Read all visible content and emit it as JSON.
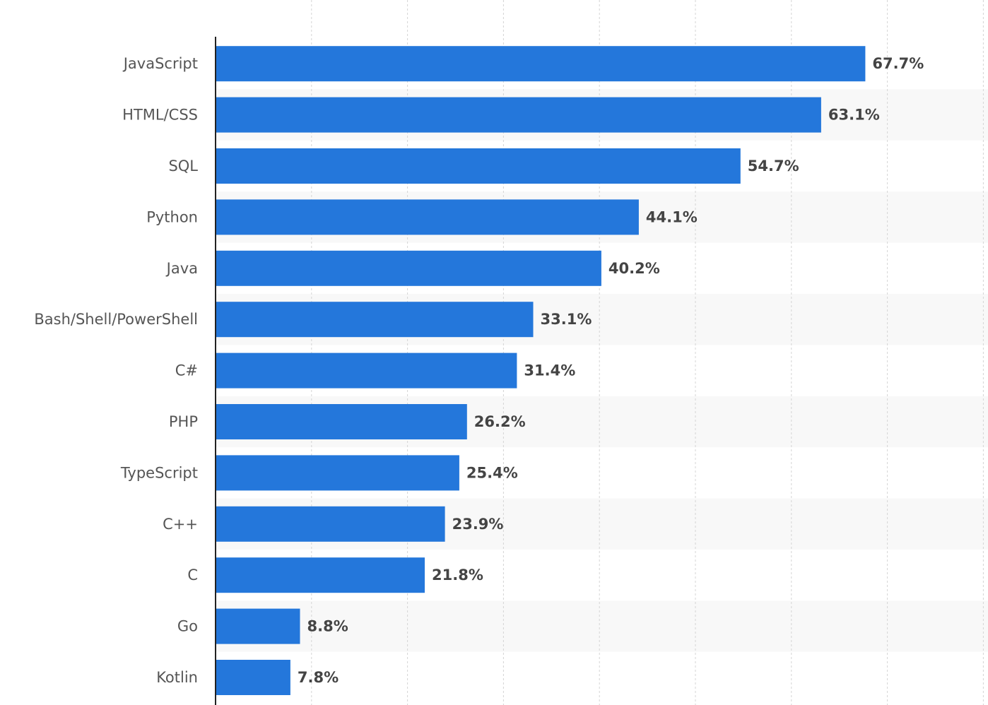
{
  "colors": {
    "bar": "#2477db",
    "band": "#f8f8f8",
    "grid": "#d4d4d4",
    "axis": "#222222",
    "category_text": "#555555",
    "value_text": "#444444"
  },
  "chart_data": {
    "type": "bar",
    "orientation": "horizontal",
    "title": "",
    "xlabel": "",
    "ylabel": "",
    "categories": [
      "JavaScript",
      "HTML/CSS",
      "SQL",
      "Python",
      "Java",
      "Bash/Shell/PowerShell",
      "C#",
      "PHP",
      "TypeScript",
      "C++",
      "C",
      "Go",
      "Kotlin"
    ],
    "values": [
      67.7,
      63.1,
      54.7,
      44.1,
      40.2,
      33.1,
      31.4,
      26.2,
      25.4,
      23.9,
      21.8,
      8.8,
      7.8
    ],
    "value_labels": [
      "67.7%",
      "63.1%",
      "54.7%",
      "44.1%",
      "40.2%",
      "33.1%",
      "31.4%",
      "26.2%",
      "25.4%",
      "23.9%",
      "21.8%",
      "8.8%",
      "7.8%"
    ],
    "unit": "%",
    "xlim": [
      0,
      80
    ],
    "x_gridlines": [
      10,
      20,
      30,
      40,
      50,
      60,
      70,
      80
    ],
    "grid": true,
    "alternating_row_bands": true,
    "legend": "none"
  }
}
